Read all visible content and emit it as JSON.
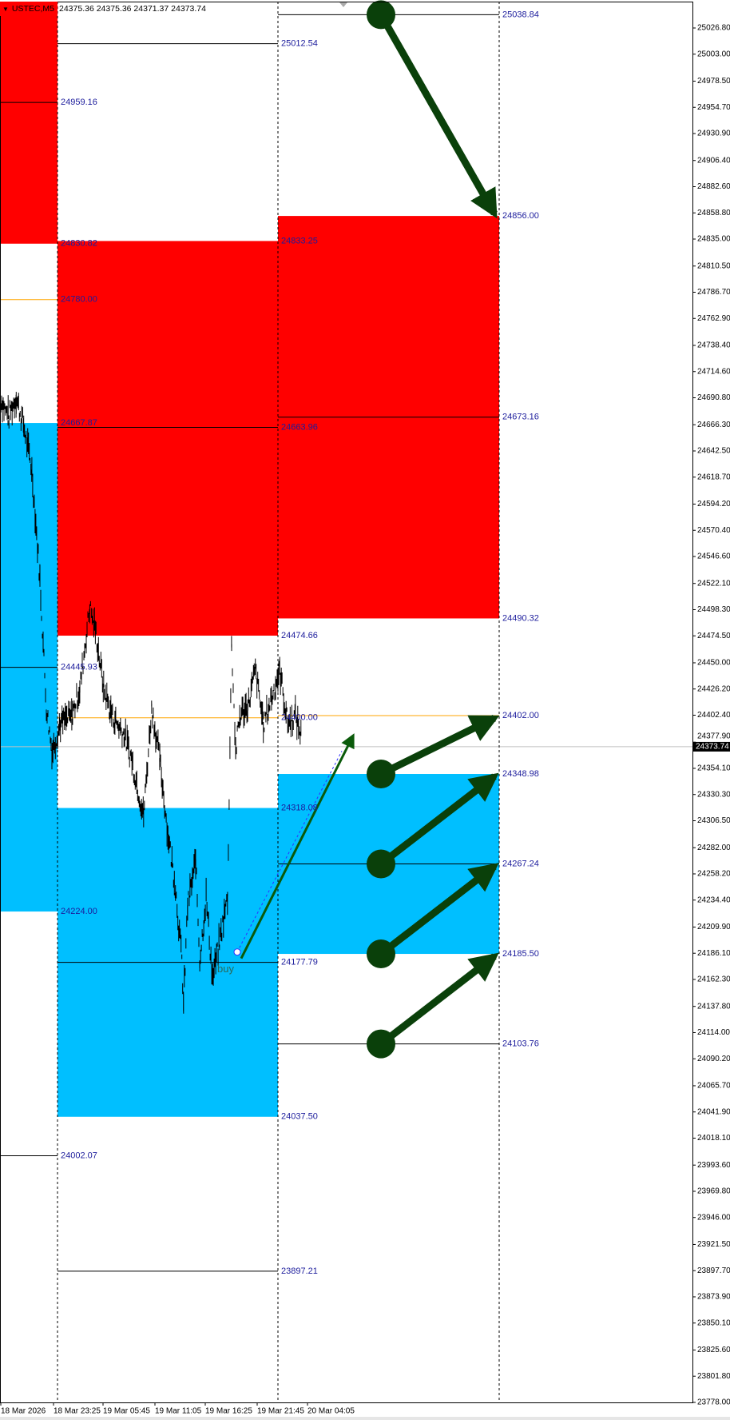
{
  "header": {
    "symbol": "USTEC,M5",
    "ohlc": "24375.36 24375.36 24371.37 24373.74",
    "menu_icon": "triangle-down-icon"
  },
  "colors": {
    "supply": "#ff0000",
    "demand": "#00bfff",
    "arrow": "#0a400a",
    "level_label": "#1c1c9c",
    "orange": "#ffa500",
    "price_line": "#c0c0c0"
  },
  "price_axis": {
    "min": 23778.0,
    "max": 25026.8,
    "ticks": [
      "25026.80",
      "25003.00",
      "24978.50",
      "24954.70",
      "24930.90",
      "24906.40",
      "24882.60",
      "24858.80",
      "24835.00",
      "24810.50",
      "24786.70",
      "24762.90",
      "24738.40",
      "24714.60",
      "24690.80",
      "24666.30",
      "24642.50",
      "24618.70",
      "24594.20",
      "24570.40",
      "24546.60",
      "24522.10",
      "24498.30",
      "24474.50",
      "24450.00",
      "24426.20",
      "24402.40",
      "24377.90",
      "24354.10",
      "24330.30",
      "24306.50",
      "24282.00",
      "24258.20",
      "24234.40",
      "24209.90",
      "24186.10",
      "24162.30",
      "24137.80",
      "24114.00",
      "24090.20",
      "24065.70",
      "24041.90",
      "24018.10",
      "23993.60",
      "23969.80",
      "23946.00",
      "23921.50",
      "23897.70",
      "23873.90",
      "23850.10",
      "23825.60",
      "23801.80",
      "23778.00"
    ],
    "current_price": "24373.74"
  },
  "time_axis": {
    "labels": [
      "18 Mar 2026",
      "18 Mar 23:25",
      "19 Mar 05:45",
      "19 Mar 11:05",
      "19 Mar 16:25",
      "19 Mar 21:45",
      "20 Mar 04:05"
    ]
  },
  "zones": [
    {
      "segment": 0,
      "type": "supply",
      "top": 25060,
      "bottom": 24830.82
    },
    {
      "segment": 0,
      "type": "demand",
      "top": 24667.87,
      "bottom": 24224.0
    },
    {
      "segment": 1,
      "type": "supply",
      "top": 24833.25,
      "bottom": 24474.66
    },
    {
      "segment": 1,
      "type": "demand",
      "top": 24318.08,
      "bottom": 24037.5
    },
    {
      "segment": 2,
      "type": "supply",
      "top": 24856.0,
      "bottom": 24490.32
    },
    {
      "segment": 2,
      "type": "demand",
      "top": 24348.98,
      "bottom": 24185.5
    }
  ],
  "lines": [
    {
      "segment": 0,
      "price": 24959.16,
      "color": "black"
    },
    {
      "segment": 0,
      "price": 24780.0,
      "color": "orange"
    },
    {
      "segment": 0,
      "price": 24445.93,
      "color": "black"
    },
    {
      "segment": 0,
      "price": 24002.07,
      "color": "black"
    },
    {
      "segment": 1,
      "price": 25012.54,
      "color": "black"
    },
    {
      "segment": 1,
      "price": 24663.96,
      "color": "black"
    },
    {
      "segment": 1,
      "price": 24400.0,
      "color": "orange"
    },
    {
      "segment": 1,
      "price": 24177.79,
      "color": "black"
    },
    {
      "segment": 1,
      "price": 23897.21,
      "color": "black"
    },
    {
      "segment": 2,
      "price": 25038.84,
      "color": "black"
    },
    {
      "segment": 2,
      "price": 24673.16,
      "color": "black"
    },
    {
      "segment": 2,
      "price": 24402.0,
      "color": "orange"
    },
    {
      "segment": 2,
      "price": 24267.24,
      "color": "black"
    },
    {
      "segment": 2,
      "price": 24103.76,
      "color": "black"
    }
  ],
  "level_labels": [
    {
      "segment": 0,
      "text": "24959.16",
      "price": 24959.16
    },
    {
      "segment": 0,
      "text": "24830.82",
      "price": 24830.82
    },
    {
      "segment": 0,
      "text": "24780.00",
      "price": 24780.0
    },
    {
      "segment": 0,
      "text": "24667.87",
      "price": 24667.87
    },
    {
      "segment": 0,
      "text": "24445.93",
      "price": 24445.93
    },
    {
      "segment": 0,
      "text": "24224.00",
      "price": 24224.0
    },
    {
      "segment": 0,
      "text": "24002.07",
      "price": 24002.07
    },
    {
      "segment": 1,
      "text": "25012.54",
      "price": 25012.54
    },
    {
      "segment": 1,
      "text": "24833.25",
      "price": 24833.25
    },
    {
      "segment": 1,
      "text": "24663.96",
      "price": 24663.96
    },
    {
      "segment": 1,
      "text": "24474.66",
      "price": 24474.66
    },
    {
      "segment": 1,
      "text": "24400.00",
      "price": 24400.0
    },
    {
      "segment": 1,
      "text": "24318.08",
      "price": 24318.08
    },
    {
      "segment": 1,
      "text": "24177.79",
      "price": 24177.79
    },
    {
      "segment": 1,
      "text": "24037.50",
      "price": 24037.5
    },
    {
      "segment": 1,
      "text": "23897.21",
      "price": 23897.21
    },
    {
      "segment": 2,
      "text": "25038.84",
      "price": 25038.84
    },
    {
      "segment": 2,
      "text": "24856.00",
      "price": 24856.0
    },
    {
      "segment": 2,
      "text": "24673.16",
      "price": 24673.16
    },
    {
      "segment": 2,
      "text": "24490.32",
      "price": 24490.32
    },
    {
      "segment": 2,
      "text": "24402.00",
      "price": 24402.0
    },
    {
      "segment": 2,
      "text": "24348.98",
      "price": 24348.98
    },
    {
      "segment": 2,
      "text": "24267.24",
      "price": 24267.24
    },
    {
      "segment": 2,
      "text": "24185.50",
      "price": 24185.5
    },
    {
      "segment": 2,
      "text": "24103.76",
      "price": 24103.76
    }
  ],
  "arrows": [
    {
      "from": 25038.84,
      "to": 24856.0
    },
    {
      "from": 24348.98,
      "to": 24402.0
    },
    {
      "from": 24267.24,
      "to": 24348.98
    },
    {
      "from": 24185.5,
      "to": 24267.24
    },
    {
      "from": 24103.76,
      "to": 24185.5
    }
  ],
  "trade": {
    "label": "buy",
    "entry": 24187.2,
    "target": 24388.0
  },
  "price_path": [
    [
      0,
      24689.7
    ],
    [
      14,
      24673.3
    ],
    [
      28,
      24689.7
    ],
    [
      41,
      24665
    ],
    [
      55,
      24623.8
    ],
    [
      69,
      24525
    ],
    [
      80,
      24409.6
    ],
    [
      90,
      24368.5
    ],
    [
      103,
      24393.2
    ],
    [
      124,
      24401.4
    ],
    [
      138,
      24426.1
    ],
    [
      155,
      24500.3
    ],
    [
      166,
      24475.5
    ],
    [
      179,
      24426.1
    ],
    [
      193,
      24401.4
    ],
    [
      214,
      24384.9
    ],
    [
      228,
      24360.2
    ],
    [
      248,
      24310.8
    ],
    [
      262,
      24409.6
    ],
    [
      276,
      24360.2
    ],
    [
      290,
      24294.3
    ],
    [
      303,
      24244.9
    ],
    [
      314,
      24179
    ],
    [
      317,
      24137.8
    ],
    [
      324,
      24228.4
    ],
    [
      338,
      24269.6
    ],
    [
      345,
      24179
    ],
    [
      356,
      24236.6
    ],
    [
      367,
      24162.5
    ],
    [
      379,
      24195.4
    ],
    [
      393,
      24236.6
    ],
    [
      400,
      24467.3
    ],
    [
      407,
      24368.5
    ],
    [
      414,
      24401.4
    ],
    [
      428,
      24409.6
    ],
    [
      441,
      24442.6
    ],
    [
      455,
      24393.2
    ],
    [
      469,
      24417.9
    ],
    [
      483,
      24442.6
    ],
    [
      497,
      24393.2
    ],
    [
      510,
      24401.4
    ],
    [
      521,
      24380.8
    ]
  ]
}
